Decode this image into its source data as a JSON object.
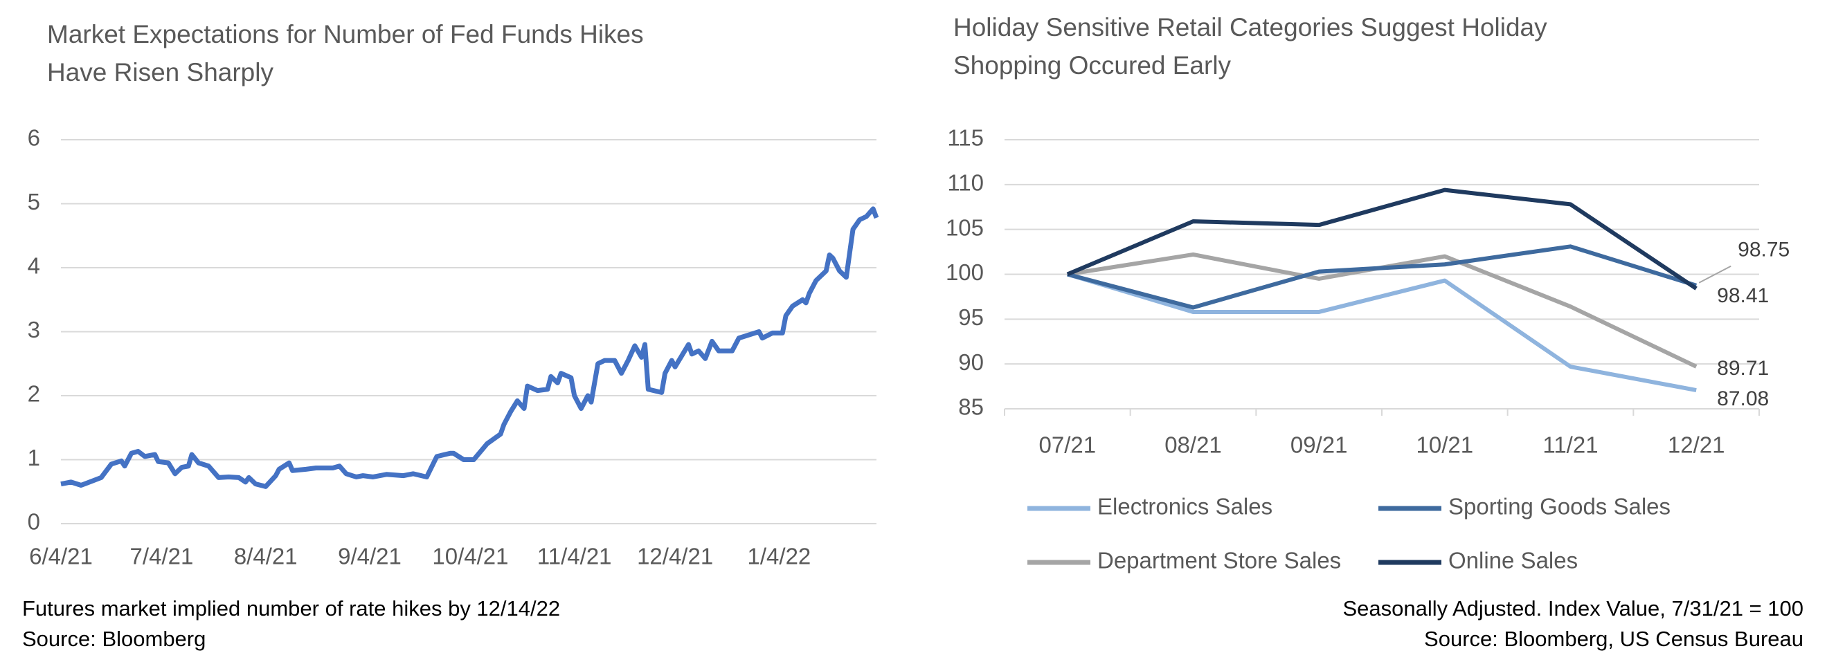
{
  "chart_data": [
    {
      "type": "line",
      "title": [
        "Market Expectations for Number of Fed Funds Hikes",
        "Have Risen Sharply"
      ],
      "notes": [
        "Futures market implied number of rate hikes by 12/14/22",
        "Source: Bloomberg"
      ],
      "x": [
        "6/4/21",
        "6/7/21",
        "6/10/21",
        "6/14/21",
        "6/16/21",
        "6/19/21",
        "6/22/21",
        "6/23/21",
        "6/25/21",
        "6/27/21",
        "6/29/21",
        "7/2/21",
        "7/3/21",
        "7/6/21",
        "7/8/21",
        "7/10/21",
        "7/12/21",
        "7/13/21",
        "7/15/21",
        "7/18/21",
        "7/21/21",
        "7/24/21",
        "7/27/21",
        "7/29/21",
        "7/30/21",
        "8/1/21",
        "8/4/21",
        "8/7/21",
        "8/8/21",
        "8/11/21",
        "8/12/21",
        "8/16/21",
        "8/19/21",
        "8/24/21",
        "8/26/21",
        "8/28/21",
        "8/31/21",
        "9/2/21",
        "9/5/21",
        "9/9/21",
        "9/14/21",
        "9/17/21",
        "9/21/21",
        "9/24/21",
        "9/28/21",
        "9/29/21",
        "10/2/21",
        "10/5/21",
        "10/9/21",
        "10/13/21",
        "10/14/21",
        "10/16/21",
        "10/18/21",
        "10/20/21",
        "10/21/21",
        "10/24/21",
        "10/27/21",
        "10/28/21",
        "10/30/21",
        "10/31/21",
        "11/3/21",
        "11/4/21",
        "11/6/21",
        "11/8/21",
        "11/9/21",
        "11/11/21",
        "11/13/21",
        "11/16/21",
        "11/18/21",
        "11/20/21",
        "11/22/21",
        "11/24/21",
        "11/25/21",
        "11/26/21",
        "11/30/21",
        "12/1/21",
        "12/3/21",
        "12/4/21",
        "12/8/21",
        "12/9/21",
        "12/11/21",
        "12/13/21",
        "12/15/21",
        "12/17/21",
        "12/21/21",
        "12/23/21",
        "12/26/21",
        "12/29/21",
        "12/30/21",
        "1/2/22",
        "1/5/22",
        "1/6/22",
        "1/8/22",
        "1/11/22",
        "1/12/22",
        "1/13/22",
        "1/15/22",
        "1/18/22",
        "1/19/22",
        "1/20/22",
        "1/22/22",
        "1/24/22",
        "1/26/22",
        "1/28/22",
        "1/30/22",
        "2/1/22",
        "2/2/22"
      ],
      "series": [
        {
          "color": "#4472c4",
          "values": [
            0.62,
            0.65,
            0.6,
            0.68,
            0.72,
            0.93,
            0.98,
            0.9,
            1.1,
            1.13,
            1.05,
            1.08,
            0.97,
            0.95,
            0.78,
            0.88,
            0.9,
            1.08,
            0.95,
            0.9,
            0.72,
            0.73,
            0.72,
            0.65,
            0.72,
            0.62,
            0.58,
            0.75,
            0.85,
            0.95,
            0.83,
            0.85,
            0.87,
            0.87,
            0.9,
            0.78,
            0.73,
            0.75,
            0.73,
            0.77,
            0.75,
            0.78,
            0.73,
            1.05,
            1.1,
            1.1,
            1.0,
            1.0,
            1.25,
            1.4,
            1.55,
            1.75,
            1.92,
            1.8,
            2.15,
            2.08,
            2.1,
            2.3,
            2.2,
            2.35,
            2.28,
            2.0,
            1.8,
            2.0,
            1.9,
            2.5,
            2.55,
            2.55,
            2.35,
            2.55,
            2.78,
            2.6,
            2.8,
            2.1,
            2.05,
            2.35,
            2.55,
            2.45,
            2.8,
            2.65,
            2.7,
            2.58,
            2.85,
            2.7,
            2.7,
            2.9,
            2.95,
            3.0,
            2.9,
            2.98,
            2.98,
            3.25,
            3.4,
            3.5,
            3.45,
            3.6,
            3.8,
            3.95,
            4.2,
            4.15,
            3.95,
            3.85,
            4.6,
            4.75,
            4.8,
            4.92,
            4.78
          ]
        }
      ],
      "xlim": [
        "6/4/21",
        "2/2/22"
      ],
      "xticks": [
        "6/4/21",
        "7/4/21",
        "8/4/21",
        "9/4/21",
        "10/4/21",
        "11/4/21",
        "12/4/21",
        "1/4/22"
      ],
      "ylim": [
        0,
        6
      ],
      "yticks": [
        0,
        1,
        2,
        3,
        4,
        5,
        6
      ],
      "grid": true
    },
    {
      "type": "line",
      "title": [
        "Holiday Sensitive Retail Categories Suggest Holiday",
        "Shopping Occured Early"
      ],
      "notes": [
        "Seasonally Adjusted. Index Value, 7/31/21 = 100",
        "Source: Bloomberg, US Census Bureau"
      ],
      "categories": [
        "07/21",
        "08/21",
        "09/21",
        "10/21",
        "11/21",
        "12/21"
      ],
      "series": [
        {
          "name": "Electronics Sales",
          "color": "#8fb4de",
          "values": [
            100,
            95.8,
            95.8,
            99.3,
            89.7,
            87.08
          ],
          "label_last": true
        },
        {
          "name": "Sporting Goods Sales",
          "color": "#3e6a9e",
          "values": [
            100,
            96.3,
            100.3,
            101.1,
            103.1,
            98.75
          ],
          "label_last": true
        },
        {
          "name": "Department Store Sales",
          "color": "#a5a5a5",
          "values": [
            100,
            102.2,
            99.5,
            102.0,
            96.4,
            89.71
          ],
          "label_last": true
        },
        {
          "name": "Online Sales",
          "color": "#1f3a5f",
          "values": [
            100,
            105.9,
            105.5,
            109.4,
            107.8,
            98.41
          ],
          "label_last": true
        }
      ],
      "ylim": [
        85,
        115
      ],
      "yticks": [
        85,
        90,
        95,
        100,
        105,
        110,
        115
      ],
      "grid": true,
      "legend": "bottom"
    }
  ]
}
